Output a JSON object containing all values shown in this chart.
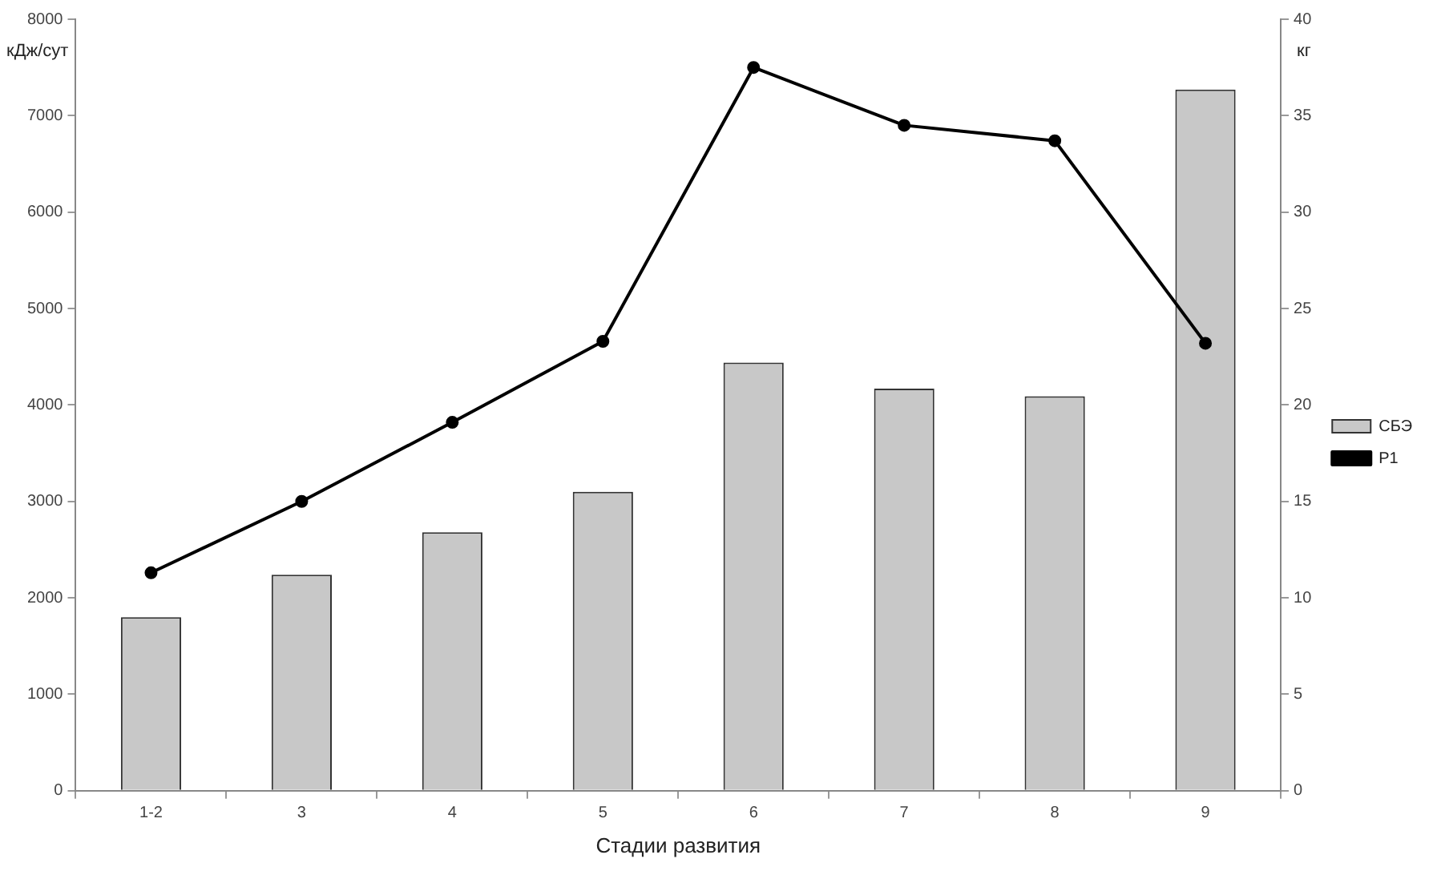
{
  "chart_data": {
    "type": "bar",
    "xlabel": "Стадии развития",
    "ylabel": "кДж/сут",
    "y2label": "кг",
    "categories": [
      "1-2",
      "3",
      "4",
      "5",
      "6",
      "7",
      "8",
      "9"
    ],
    "series": [
      {
        "name": "СБЭ",
        "color": "#c8c8c8",
        "values": [
          1800,
          2240,
          2680,
          3100,
          4440,
          4170,
          4090,
          7270
        ]
      },
      {
        "name": "P1",
        "type": "line",
        "axis": "y2",
        "color": "#000000",
        "values": [
          11.3,
          15.0,
          19.1,
          23.3,
          37.5,
          34.5,
          33.7,
          23.2
        ]
      }
    ],
    "ylim": [
      0,
      8000
    ],
    "yticks": [
      0,
      1000,
      2000,
      3000,
      4000,
      5000,
      6000,
      7000,
      8000
    ],
    "y2lim": [
      0,
      40
    ],
    "y2ticks": [
      0,
      5,
      10,
      15,
      20,
      25,
      30,
      35,
      40
    ],
    "grid": false,
    "legend": "right",
    "marker": "circle",
    "line_style": "solid"
  }
}
